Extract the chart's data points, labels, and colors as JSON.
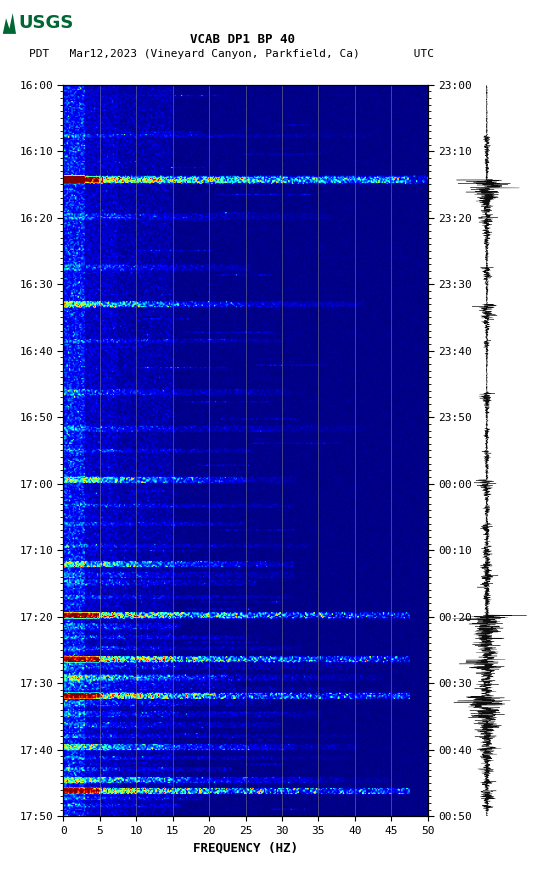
{
  "title_line1": "VCAB DP1 BP 40",
  "title_line2": "PDT   Mar12,2023 (Vineyard Canyon, Parkfield, Ca)        UTC",
  "xlabel": "FREQUENCY (HZ)",
  "freq_min": 0,
  "freq_max": 50,
  "freq_ticks": [
    0,
    5,
    10,
    15,
    20,
    25,
    30,
    35,
    40,
    45,
    50
  ],
  "time_left_labels": [
    "16:00",
    "16:10",
    "16:20",
    "16:30",
    "16:40",
    "16:50",
    "17:00",
    "17:10",
    "17:20",
    "17:30",
    "17:40",
    "17:50"
  ],
  "time_right_labels": [
    "23:00",
    "23:10",
    "23:20",
    "23:30",
    "23:40",
    "23:50",
    "00:00",
    "00:10",
    "00:20",
    "00:30",
    "00:40",
    "00:50"
  ],
  "bg_color": "white",
  "grid_color": "#888888",
  "grid_alpha": 0.6,
  "usgs_green": "#006633",
  "colormap": "jet"
}
